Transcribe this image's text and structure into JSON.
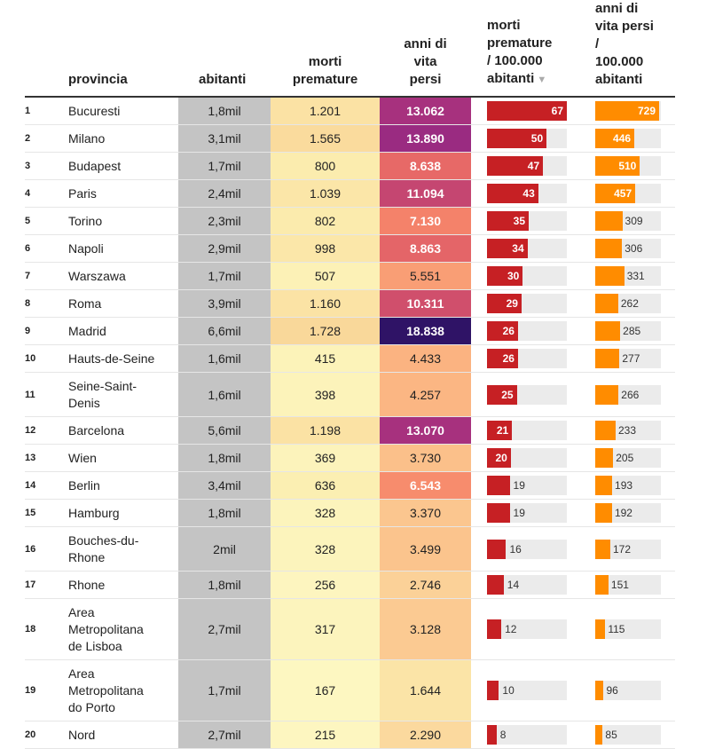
{
  "headers": {
    "provincia": [
      "provincia"
    ],
    "abitanti": [
      "abitanti"
    ],
    "morti": [
      "morti",
      "premature"
    ],
    "anni": [
      "anni di",
      "vita",
      "persi"
    ],
    "morti100k": [
      "morti",
      "premature",
      "/ 100.000",
      "abitanti"
    ],
    "anni100k": [
      "anni di",
      "vita persi",
      "/",
      "100.000",
      "abitanti"
    ],
    "sort_indicator": "▼"
  },
  "colors": {
    "bar_morti": "#c62024",
    "bar_anni": "#ff8c00",
    "track": "#ebebeb",
    "abitanti_bg": "#c4c4c4"
  },
  "chart_data": {
    "type": "table",
    "columns": [
      "provincia",
      "abitanti",
      "morti premature",
      "anni di vita persi",
      "morti premature / 100.000 abitanti",
      "anni di vita persi / 100.000 abitanti"
    ],
    "sorted_by": "morti premature / 100.000 abitanti",
    "sort_order": "descending",
    "rows": [
      {
        "rank": "1",
        "provincia": "Bucuresti",
        "abitanti": "1,8mil",
        "morti": "1.201",
        "anni": "13.062",
        "morti100k": 67,
        "anni100k": 729
      },
      {
        "rank": "2",
        "provincia": "Milano",
        "abitanti": "3,1mil",
        "morti": "1.565",
        "anni": "13.890",
        "morti100k": 50,
        "anni100k": 446
      },
      {
        "rank": "3",
        "provincia": "Budapest",
        "abitanti": "1,7mil",
        "morti": "800",
        "anni": "8.638",
        "morti100k": 47,
        "anni100k": 510
      },
      {
        "rank": "4",
        "provincia": "Paris",
        "abitanti": "2,4mil",
        "morti": "1.039",
        "anni": "11.094",
        "morti100k": 43,
        "anni100k": 457
      },
      {
        "rank": "5",
        "provincia": "Torino",
        "abitanti": "2,3mil",
        "morti": "802",
        "anni": "7.130",
        "morti100k": 35,
        "anni100k": 309
      },
      {
        "rank": "6",
        "provincia": "Napoli",
        "abitanti": "2,9mil",
        "morti": "998",
        "anni": "8.863",
        "morti100k": 34,
        "anni100k": 306
      },
      {
        "rank": "7",
        "provincia": "Warszawa",
        "abitanti": "1,7mil",
        "morti": "507",
        "anni": "5.551",
        "morti100k": 30,
        "anni100k": 331
      },
      {
        "rank": "8",
        "provincia": "Roma",
        "abitanti": "3,9mil",
        "morti": "1.160",
        "anni": "10.311",
        "morti100k": 29,
        "anni100k": 262
      },
      {
        "rank": "9",
        "provincia": "Madrid",
        "abitanti": "6,6mil",
        "morti": "1.728",
        "anni": "18.838",
        "morti100k": 26,
        "anni100k": 285
      },
      {
        "rank": "10",
        "provincia": "Hauts-de-Seine",
        "abitanti": "1,6mil",
        "morti": "415",
        "anni": "4.433",
        "morti100k": 26,
        "anni100k": 277
      },
      {
        "rank": "11",
        "provincia": "Seine-Saint-Denis",
        "abitanti": "1,6mil",
        "morti": "398",
        "anni": "4.257",
        "morti100k": 25,
        "anni100k": 266
      },
      {
        "rank": "12",
        "provincia": "Barcelona",
        "abitanti": "5,6mil",
        "morti": "1.198",
        "anni": "13.070",
        "morti100k": 21,
        "anni100k": 233
      },
      {
        "rank": "13",
        "provincia": "Wien",
        "abitanti": "1,8mil",
        "morti": "369",
        "anni": "3.730",
        "morti100k": 20,
        "anni100k": 205
      },
      {
        "rank": "14",
        "provincia": "Berlin",
        "abitanti": "3,4mil",
        "morti": "636",
        "anni": "6.543",
        "morti100k": 19,
        "anni100k": 193
      },
      {
        "rank": "15",
        "provincia": "Hamburg",
        "abitanti": "1,8mil",
        "morti": "328",
        "anni": "3.370",
        "morti100k": 19,
        "anni100k": 192
      },
      {
        "rank": "16",
        "provincia": "Bouches-du-Rhone",
        "abitanti": "2mil",
        "morti": "328",
        "anni": "3.499",
        "morti100k": 16,
        "anni100k": 172
      },
      {
        "rank": "17",
        "provincia": "Rhone",
        "abitanti": "1,8mil",
        "morti": "256",
        "anni": "2.746",
        "morti100k": 14,
        "anni100k": 151
      },
      {
        "rank": "18",
        "provincia": "Area Metropolitana de Lisboa",
        "abitanti": "2,7mil",
        "morti": "317",
        "anni": "3.128",
        "morti100k": 12,
        "anni100k": 115
      },
      {
        "rank": "19",
        "provincia": "Area Metropolitana do Porto",
        "abitanti": "1,7mil",
        "morti": "167",
        "anni": "1.644",
        "morti100k": 10,
        "anni100k": 96
      },
      {
        "rank": "20",
        "provincia": "Nord",
        "abitanti": "2,7mil",
        "morti": "215",
        "anni": "2.290",
        "morti100k": 8,
        "anni100k": 85
      }
    ]
  }
}
